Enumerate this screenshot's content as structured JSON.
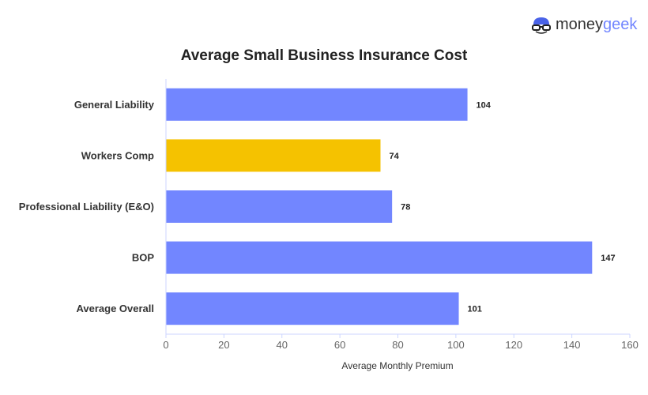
{
  "logo": {
    "text_part1": "money",
    "text_part2": "geek"
  },
  "chart_data": {
    "type": "bar",
    "orientation": "horizontal",
    "title": "Average Small Business Insurance Cost",
    "xlabel": "Average Monthly Premium",
    "ylabel": "",
    "categories": [
      "General Liability",
      "Workers Comp",
      "Professional Liability (E&O)",
      "BOP",
      "Average Overall"
    ],
    "values": [
      104,
      74,
      78,
      147,
      101
    ],
    "bar_colors": [
      "#7286ff",
      "#f5c200",
      "#7286ff",
      "#7286ff",
      "#7286ff"
    ],
    "xlim": [
      0,
      160
    ],
    "xticks": [
      0,
      20,
      40,
      60,
      80,
      100,
      120,
      140,
      160
    ],
    "grid": false,
    "data_labels": true
  }
}
